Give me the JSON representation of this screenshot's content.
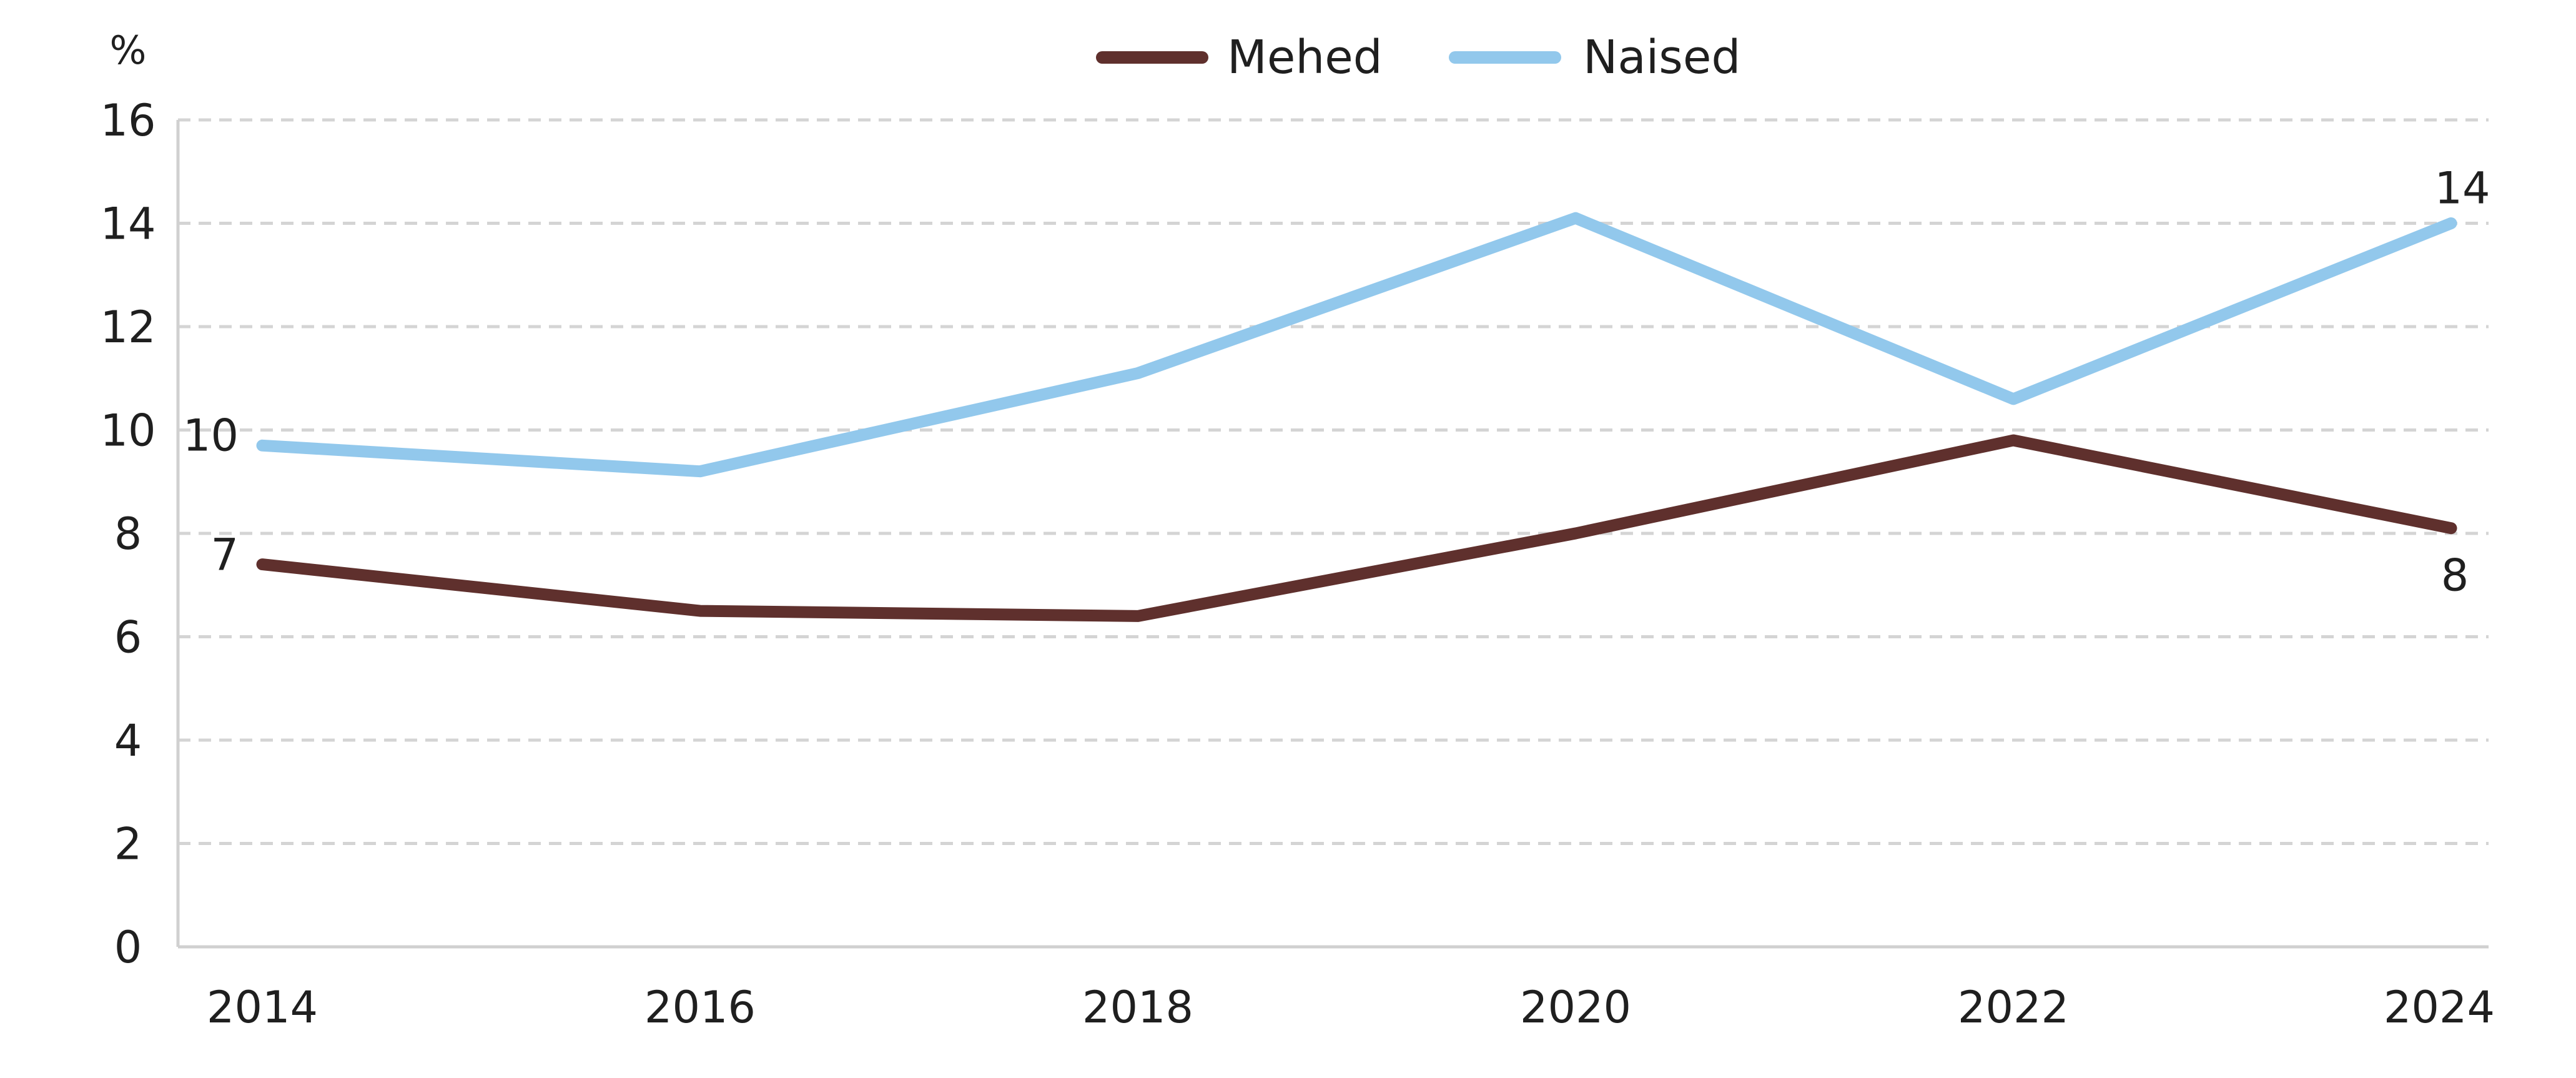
{
  "chart_data": {
    "type": "line",
    "x": [
      2014,
      2016,
      2018,
      2020,
      2022,
      2024
    ],
    "ylabel": "%",
    "ylim": [
      0,
      16
    ],
    "yticks": [
      0,
      2,
      4,
      6,
      8,
      10,
      12,
      14,
      16
    ],
    "grid": true,
    "legend_position": "top-center",
    "series": [
      {
        "name": "Mehed",
        "color": "#5f302d",
        "values": [
          7.4,
          6.5,
          6.4,
          8.0,
          9.8,
          8.1
        ],
        "labels": [
          {
            "index": 0,
            "text": "7"
          },
          {
            "index": 5,
            "text": "8"
          }
        ]
      },
      {
        "name": "Naised",
        "color": "#92c8ec",
        "values": [
          9.7,
          9.2,
          11.1,
          14.1,
          10.6,
          14.0
        ],
        "labels": [
          {
            "index": 0,
            "text": "10"
          },
          {
            "index": 5,
            "text": "14"
          }
        ]
      }
    ]
  }
}
